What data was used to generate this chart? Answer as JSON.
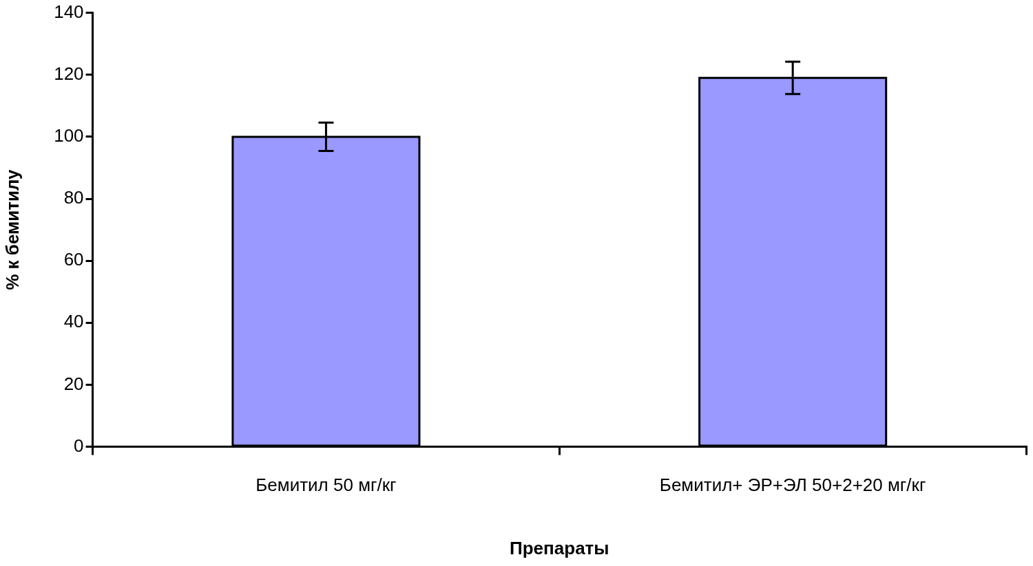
{
  "chart_data": {
    "type": "bar",
    "xlabel": "Препараты",
    "ylabel": "% к бемитилу",
    "categories": [
      "Бемитил 50 мг/кг",
      "Бемитил+ ЭР+ЭЛ 50+2+20 мг/кг"
    ],
    "values": [
      100,
      119
    ],
    "errors": [
      4.6,
      5.2
    ],
    "color": "#9999ff",
    "ylim": [
      0,
      140
    ],
    "yticks": [
      0,
      20,
      40,
      60,
      80,
      100,
      120,
      140
    ],
    "grid": false,
    "legend": false
  }
}
